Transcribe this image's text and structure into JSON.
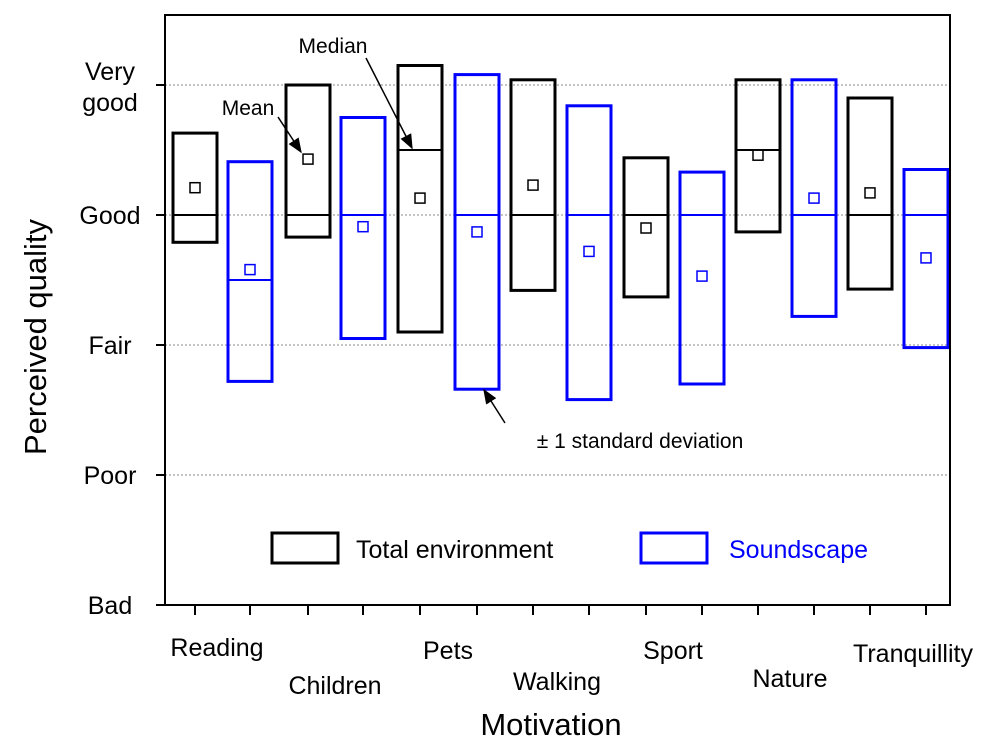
{
  "chart_data": {
    "type": "box",
    "xlabel": "Motivation",
    "ylabel": "Perceived quality",
    "y_levels": [
      "Bad",
      "Poor",
      "Fair",
      "Good",
      "Very good"
    ],
    "y_tick_labels": [
      {
        "value": 1,
        "lines": [
          "Bad"
        ]
      },
      {
        "value": 2,
        "lines": [
          "Poor"
        ]
      },
      {
        "value": 3,
        "lines": [
          "Fair"
        ]
      },
      {
        "value": 4,
        "lines": [
          "Good"
        ]
      },
      {
        "value": 5,
        "lines": [
          "Very",
          "good"
        ]
      }
    ],
    "ylim": [
      1,
      5.5
    ],
    "grid_y": [
      2,
      3,
      4,
      5
    ],
    "categories": [
      "Reading",
      "Children",
      "Pets",
      "Walking",
      "Sport",
      "Nature",
      "Tranquillity"
    ],
    "category_labels": [
      "Reading",
      "Children",
      "Pets",
      "Walking",
      "Sport",
      "Nature",
      "Tranquillity"
    ],
    "series": [
      {
        "name": "Total environment",
        "color": "#000000",
        "upper": [
          4.63,
          5.0,
          5.15,
          5.04,
          4.44,
          5.04,
          4.9
        ],
        "lower": [
          3.79,
          3.83,
          3.1,
          3.42,
          3.37,
          3.87,
          3.43
        ],
        "median": [
          4.0,
          4.0,
          4.5,
          4.0,
          4.0,
          4.5,
          4.0
        ],
        "mean": [
          4.21,
          4.43,
          4.13,
          4.23,
          3.9,
          4.46,
          4.17
        ]
      },
      {
        "name": "Soundscape",
        "color": "#0000ff",
        "upper": [
          4.41,
          4.75,
          5.08,
          4.84,
          4.33,
          5.04,
          4.35
        ],
        "lower": [
          2.72,
          3.05,
          2.66,
          2.58,
          2.7,
          3.22,
          2.98
        ],
        "median": [
          3.5,
          4.0,
          4.0,
          4.0,
          4.0,
          4.0,
          4.0
        ],
        "mean": [
          3.58,
          3.91,
          3.87,
          3.72,
          3.53,
          4.13,
          3.67
        ]
      }
    ],
    "annotations": {
      "median": "Median",
      "mean": "Mean",
      "std": "± 1 standard deviation"
    },
    "legend_position": "bottom-center",
    "grid": "horizontal dotted"
  }
}
